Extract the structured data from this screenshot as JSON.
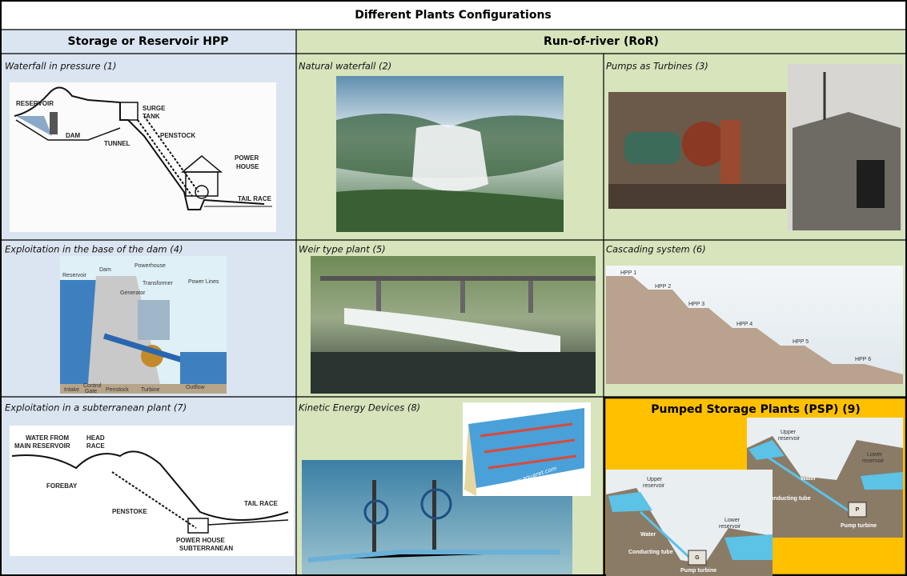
{
  "table": {
    "title": "Different Plants Configurations",
    "headers": [
      "Storage or Reservoir HPP",
      "Run-of-river (RoR)"
    ],
    "cells": [
      [
        {
          "caption": "Waterfall in pressure (1)",
          "labels": [
            "RESERVOIR",
            "DAM",
            "TUNNEL",
            "SURGE",
            "TANK",
            "PENSTOCK",
            "POWER",
            "HOUSE",
            "TAIL RACE"
          ]
        },
        {
          "caption": "Natural waterfall (2)"
        },
        {
          "caption": "Pumps as Turbines (3)"
        }
      ],
      [
        {
          "caption": "Exploitation in the base of the dam (4)",
          "labels": [
            "Reservoir",
            "Dam",
            "Powerhouse",
            "Transformer",
            "Generator",
            "Power Lines",
            "Intake",
            "Control",
            "Gate",
            "Penstock",
            "Turbine",
            "Outflow"
          ]
        },
        {
          "caption": "Weir type plant (5)"
        },
        {
          "caption": "Cascading system (6)",
          "labels": [
            "HPP 1",
            "HPP 2",
            "HPP 3",
            "HPP 4",
            "HPP 5",
            "HPP 6"
          ]
        }
      ],
      [
        {
          "caption": "Exploitation in a subterranean plant (7)",
          "labels": [
            "WATER FROM",
            "MAIN RESERVOIR",
            "HEAD",
            "RACE",
            "FOREBAY",
            "PENSTOKE",
            "TAIL RACE",
            "POWER HOUSE",
            "SUBTERRANEAN"
          ]
        },
        {
          "caption": "Kinetic Energy Devices (8)",
          "labels": [
            "www.aquaret.com"
          ]
        },
        {
          "caption": "Pumped Storage Plants (PSP) (9)",
          "labels": [
            "Upper",
            "reservoir",
            "Lower",
            "reservoir",
            "Water",
            "Conducting tube",
            "P",
            "Pump turbine",
            "Upper",
            "reservoir",
            "Lower",
            "reservoir",
            "Water",
            "Conducting tube",
            "G",
            "Pump turbine"
          ]
        }
      ]
    ]
  }
}
